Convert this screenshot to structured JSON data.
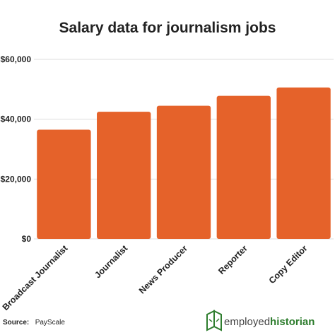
{
  "chart_data": {
    "type": "bar",
    "title": "Salary data for journalism jobs",
    "categories": [
      "Broadcast Journalist",
      "Journalist",
      "News Producer",
      "Reporter",
      "Copy Editor"
    ],
    "values": [
      36500,
      42500,
      44500,
      47800,
      50600
    ],
    "ylim": [
      0,
      60000
    ],
    "yticks": [
      0,
      20000,
      40000,
      60000
    ],
    "ytick_labels": [
      "$0",
      "$20,000",
      "$40,000",
      "$60,000"
    ],
    "grid": true,
    "legend": "none",
    "bar_color": "#e5622a",
    "grid_color": "#dddddd"
  },
  "source": {
    "label": "Source:",
    "value": "PayScale"
  },
  "brand": {
    "part1": "employed",
    "part2": "historian",
    "logo_icon": "book-icon",
    "color": "#2e7d2e"
  }
}
